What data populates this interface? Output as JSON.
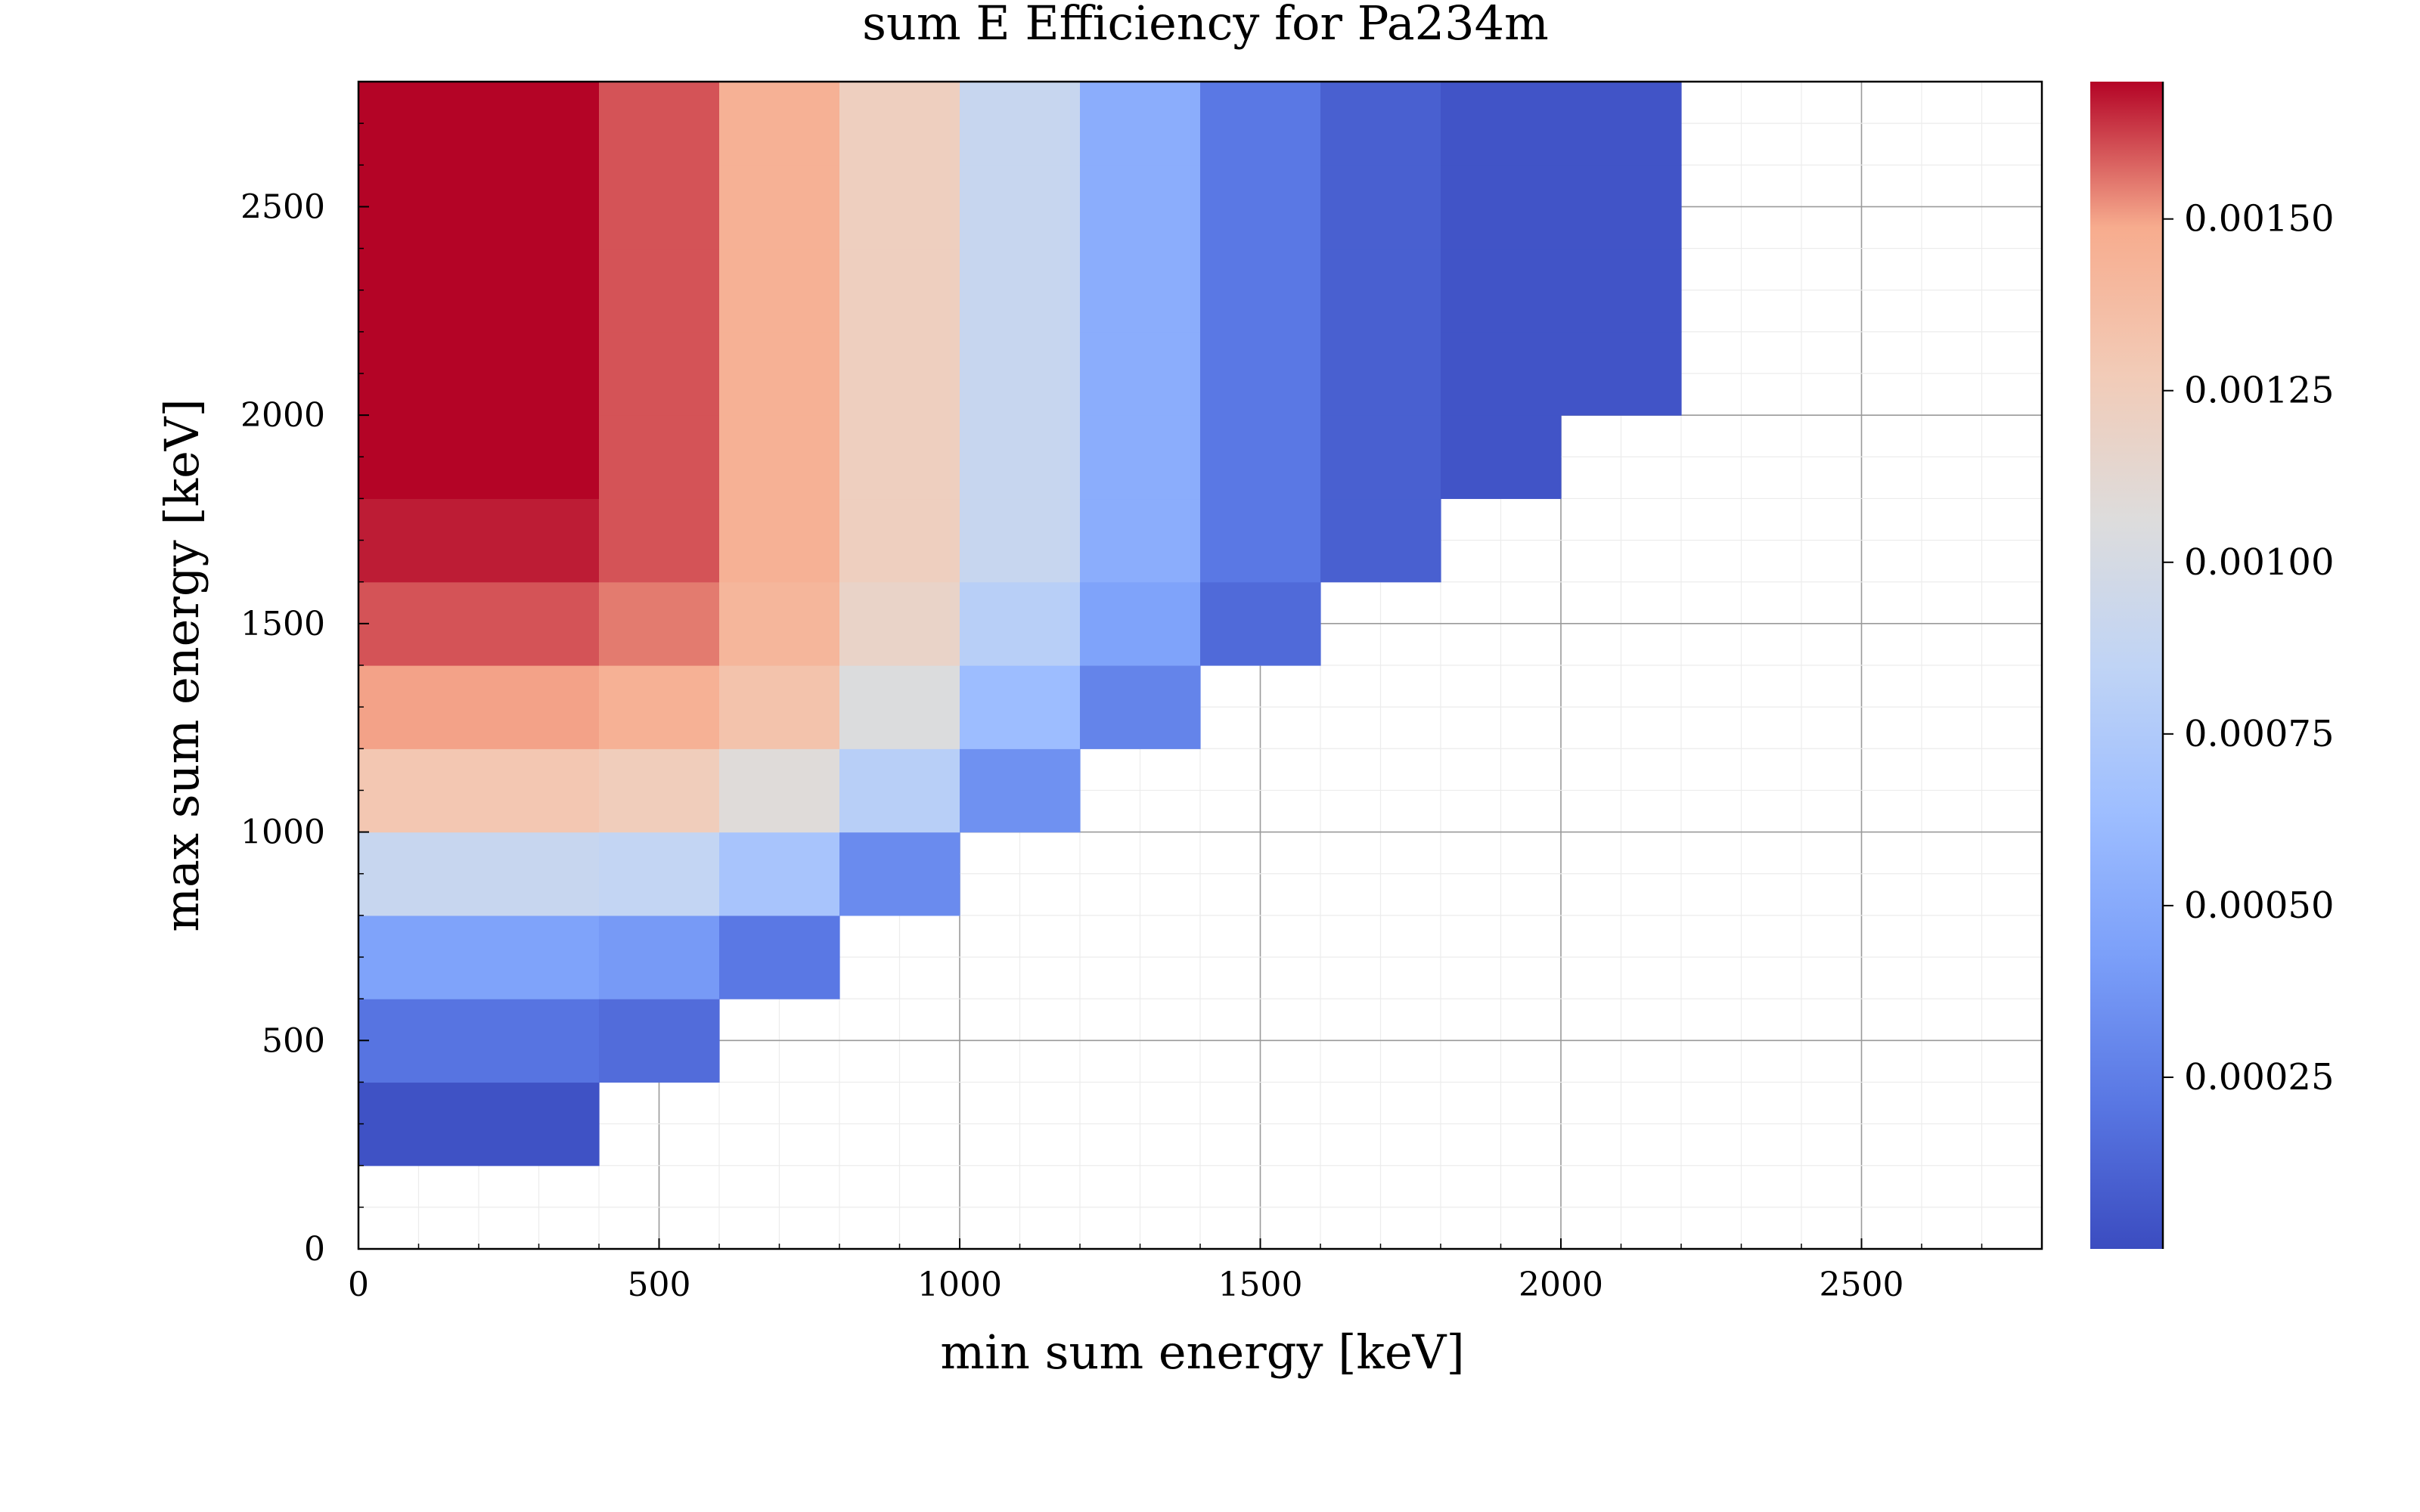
{
  "chart_data": {
    "type": "heatmap",
    "title": "sum E Efficiency for Pa234m",
    "xlabel": "min sum energy [keV]",
    "ylabel": "max sum energy [keV]",
    "xlim": [
      0,
      2800
    ],
    "ylim": [
      0,
      2800
    ],
    "x_ticks": [
      "0",
      "500",
      "1000",
      "1500",
      "2000",
      "2500"
    ],
    "y_ticks": [
      "0",
      "500",
      "1000",
      "1500",
      "2000",
      "2500"
    ],
    "x_tick_values": [
      0,
      500,
      1000,
      1500,
      2000,
      2500
    ],
    "y_tick_values": [
      0,
      500,
      1000,
      1500,
      2000,
      2500
    ],
    "bin_width": 200,
    "bin_height": 200,
    "colorscale": "coolwarm",
    "colorbar_range": [
      0,
      0.0017
    ],
    "colorbar_ticks": [
      "0.00025",
      "0.00050",
      "0.00075",
      "0.00100",
      "0.00125",
      "0.00150"
    ],
    "colorbar_tick_values": [
      0.00025,
      0.0005,
      0.00075,
      0.001,
      0.00125,
      0.0015
    ],
    "grid": true,
    "columns": [
      {
        "x0": 0,
        "x1": 200,
        "y_from": 200,
        "vals": [
          3e-05,
          0.0002,
          0.00045,
          0.0009,
          0.0013,
          0.0015,
          0.0016,
          0.00167,
          0.0017,
          0.0017,
          0.0017,
          0.0017,
          0.0017
        ]
      },
      {
        "x0": 200,
        "x1": 400,
        "y_from": 200,
        "vals": [
          3e-05,
          0.0002,
          0.00045,
          0.0009,
          0.0013,
          0.0015,
          0.0016,
          0.00167,
          0.0017,
          0.0017,
          0.0017,
          0.0017,
          0.0017
        ]
      },
      {
        "x0": 400,
        "x1": 600,
        "y_from": 400,
        "vals": [
          0.00016,
          0.0004,
          0.00087,
          0.00125,
          0.00145,
          0.00155,
          0.0016,
          0.0016,
          0.0016,
          0.0016,
          0.0016,
          0.0016
        ]
      },
      {
        "x0": 600,
        "x1": 800,
        "y_from": 600,
        "vals": [
          0.00022,
          0.0007,
          0.00108,
          0.00133,
          0.00142,
          0.00145,
          0.00145,
          0.00145,
          0.00145,
          0.00145,
          0.00145
        ]
      },
      {
        "x0": 800,
        "x1": 1000,
        "y_from": 800,
        "vals": [
          0.00032,
          0.0008,
          0.00105,
          0.00118,
          0.00123,
          0.00123,
          0.00123,
          0.00123,
          0.00123,
          0.00123
        ]
      },
      {
        "x0": 1000,
        "x1": 1200,
        "y_from": 1000,
        "vals": [
          0.00035,
          0.00063,
          0.0008,
          0.0009,
          0.0009,
          0.0009,
          0.0009,
          0.0009,
          0.0009
        ]
      },
      {
        "x0": 1200,
        "x1": 1400,
        "y_from": 1200,
        "vals": [
          0.00028,
          0.00045,
          0.00052,
          0.00052,
          0.00052,
          0.00052,
          0.00052,
          0.00052
        ]
      },
      {
        "x0": 1400,
        "x1": 1600,
        "y_from": 1400,
        "vals": [
          0.00015,
          0.00022,
          0.00022,
          0.00022,
          0.00022,
          0.00022,
          0.00022
        ]
      },
      {
        "x0": 1600,
        "x1": 1800,
        "y_from": 1600,
        "vals": [
          0.0001,
          0.0001,
          0.0001,
          0.0001,
          0.0001,
          0.0001
        ]
      },
      {
        "x0": 1800,
        "x1": 2000,
        "y_from": 1800,
        "vals": [
          4e-05,
          4e-05,
          4e-05,
          4e-05,
          4e-05
        ]
      },
      {
        "x0": 2000,
        "x1": 2200,
        "y_from": 2000,
        "vals": [
          4e-05,
          4e-05,
          4e-05,
          4e-05
        ]
      }
    ]
  }
}
